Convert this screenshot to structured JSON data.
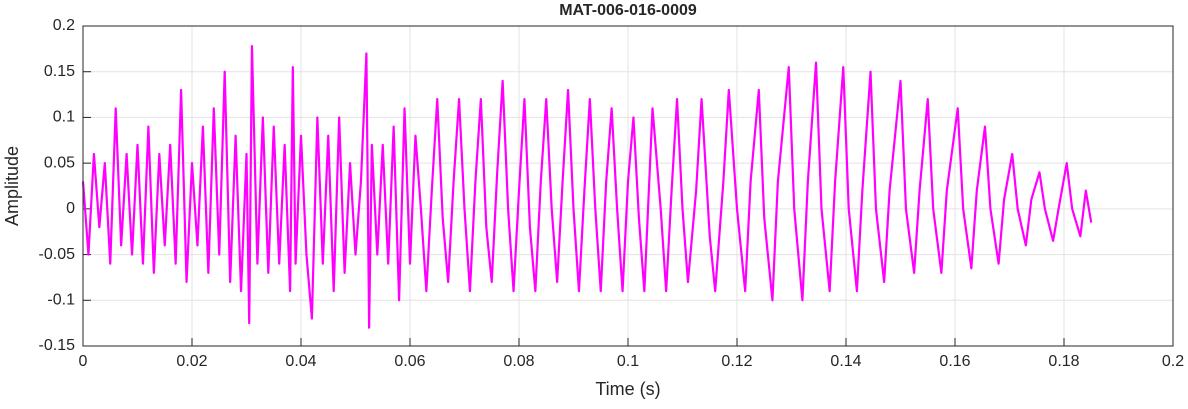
{
  "chart_data": {
    "type": "line",
    "title": "MAT-006-016-0009",
    "x_label": "Time (s)",
    "y_label": "Amplitude",
    "xlim": [
      0,
      0.2
    ],
    "ylim": [
      -0.15,
      0.2
    ],
    "xticks": [
      0,
      0.02,
      0.04,
      0.06,
      0.08,
      0.1,
      0.12,
      0.14,
      0.16,
      0.18,
      0.2
    ],
    "yticks": [
      -0.15,
      -0.1,
      -0.05,
      0,
      0.05,
      0.1,
      0.15,
      0.2
    ],
    "grid": true,
    "x": [
      0,
      0.001,
      0.002,
      0.003,
      0.004,
      0.005,
      0.006,
      0.007,
      0.008,
      0.009,
      0.01,
      0.011,
      0.012,
      0.013,
      0.014,
      0.015,
      0.016,
      0.017,
      0.018,
      0.019,
      0.02,
      0.021,
      0.022,
      0.023,
      0.024,
      0.025,
      0.026,
      0.027,
      0.028,
      0.029,
      0.03,
      0.0305,
      0.031,
      0.032,
      0.033,
      0.034,
      0.035,
      0.036,
      0.037,
      0.038,
      0.0385,
      0.039,
      0.04,
      0.041,
      0.042,
      0.043,
      0.044,
      0.045,
      0.046,
      0.047,
      0.048,
      0.049,
      0.05,
      0.051,
      0.052,
      0.0525,
      0.053,
      0.054,
      0.055,
      0.056,
      0.057,
      0.058,
      0.059,
      0.06,
      0.061,
      0.062,
      0.063,
      0.064,
      0.065,
      0.066,
      0.067,
      0.068,
      0.069,
      0.07,
      0.071,
      0.072,
      0.073,
      0.074,
      0.075,
      0.076,
      0.077,
      0.078,
      0.079,
      0.08,
      0.081,
      0.082,
      0.083,
      0.084,
      0.085,
      0.086,
      0.087,
      0.088,
      0.089,
      0.09,
      0.091,
      0.092,
      0.093,
      0.094,
      0.095,
      0.096,
      0.097,
      0.098,
      0.099,
      0.1,
      0.101,
      0.102,
      0.103,
      0.1045,
      0.106,
      0.107,
      0.108,
      0.109,
      0.11,
      0.111,
      0.1125,
      0.1135,
      0.115,
      0.116,
      0.1175,
      0.1185,
      0.12,
      0.1215,
      0.1225,
      0.124,
      0.125,
      0.1265,
      0.1275,
      0.1295,
      0.1305,
      0.132,
      0.133,
      0.1345,
      0.1355,
      0.137,
      0.138,
      0.1395,
      0.1405,
      0.142,
      0.143,
      0.1445,
      0.1455,
      0.147,
      0.148,
      0.15,
      0.151,
      0.1525,
      0.1535,
      0.155,
      0.156,
      0.1575,
      0.1585,
      0.1605,
      0.1615,
      0.163,
      0.164,
      0.1655,
      0.1665,
      0.168,
      0.169,
      0.1705,
      0.1715,
      0.173,
      0.174,
      0.1755,
      0.1765,
      0.178,
      0.179,
      0.1805,
      0.1815,
      0.183,
      0.184,
      0.185
    ],
    "series": [
      {
        "color": "#ff00ff",
        "values": [
          0.03,
          -0.05,
          0.06,
          -0.02,
          0.05,
          -0.06,
          0.11,
          -0.04,
          0.06,
          -0.05,
          0.07,
          -0.06,
          0.09,
          -0.07,
          0.06,
          -0.04,
          0.07,
          -0.06,
          0.13,
          -0.08,
          0.05,
          -0.04,
          0.09,
          -0.07,
          0.11,
          -0.05,
          0.15,
          -0.08,
          0.08,
          -0.09,
          0.06,
          -0.125,
          0.178,
          -0.06,
          0.1,
          -0.07,
          0.09,
          -0.06,
          0.07,
          -0.09,
          0.155,
          -0.06,
          0.08,
          -0.05,
          -0.12,
          0.1,
          -0.06,
          0.08,
          -0.09,
          0.1,
          -0.07,
          0.05,
          -0.05,
          0.03,
          0.17,
          -0.13,
          0.07,
          -0.05,
          0.07,
          -0.06,
          0.09,
          -0.1,
          0.11,
          -0.06,
          0.08,
          0.0,
          -0.09,
          0.02,
          0.12,
          -0.01,
          -0.08,
          0.03,
          0.12,
          0.0,
          -0.09,
          0.03,
          0.12,
          -0.02,
          -0.08,
          0.04,
          0.14,
          0.0,
          -0.09,
          0.02,
          0.12,
          -0.02,
          -0.09,
          0.03,
          0.12,
          0.0,
          -0.08,
          0.03,
          0.13,
          0.0,
          -0.09,
          0.02,
          0.12,
          0.0,
          -0.09,
          0.03,
          0.11,
          0.0,
          -0.09,
          0.03,
          0.1,
          -0.01,
          -0.09,
          0.11,
          0.0,
          -0.09,
          0.02,
          0.12,
          0.0,
          -0.08,
          0.02,
          0.12,
          -0.03,
          -0.09,
          0.03,
          0.13,
          0.0,
          -0.09,
          0.03,
          0.13,
          -0.01,
          -0.1,
          0.03,
          0.155,
          0.0,
          -0.1,
          0.03,
          0.16,
          0.0,
          -0.09,
          0.03,
          0.155,
          0.0,
          -0.09,
          0.02,
          0.15,
          0.0,
          -0.08,
          0.02,
          0.14,
          0.0,
          -0.07,
          0.02,
          0.12,
          0.0,
          -0.07,
          0.02,
          0.11,
          0.0,
          -0.065,
          0.02,
          0.09,
          0.0,
          -0.06,
          0.01,
          0.06,
          0.0,
          -0.04,
          0.01,
          0.04,
          0.0,
          -0.035,
          0.0,
          0.05,
          0.0,
          -0.03,
          0.02,
          -0.015
        ]
      }
    ]
  }
}
